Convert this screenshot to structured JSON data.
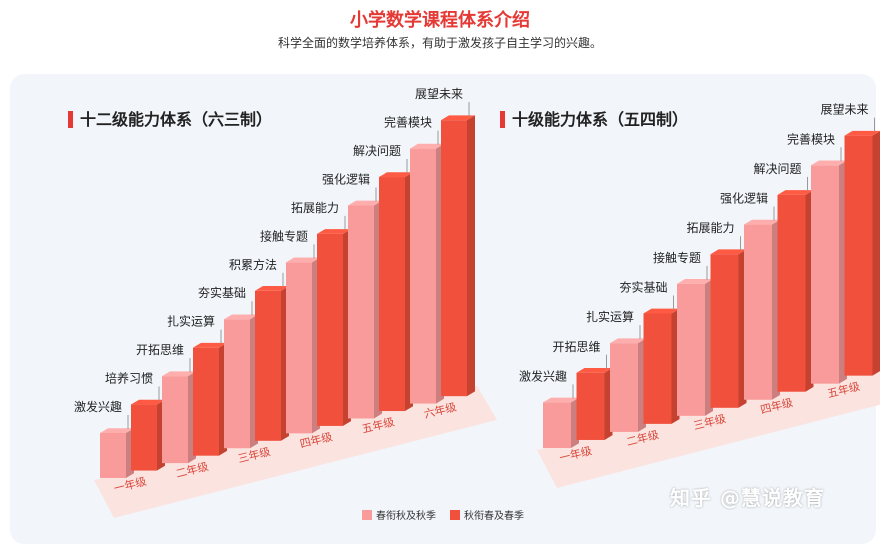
{
  "header": {
    "title": "小学数学课程体系介绍",
    "subtitle": "科学全面的数学培养体系，有助于激发孩子自主学习的兴趣。"
  },
  "colors": {
    "light": "#f99b9b",
    "dark": "#f0503c"
  },
  "legend": {
    "light_label": "春衔秋及秋季",
    "dark_label": "秋衔春及春季"
  },
  "watermark": "知乎 @慧说教育",
  "chart_data": [
    {
      "type": "bar",
      "title": "十二级能力体系（六三制）",
      "categories": [
        "一年级",
        "二年级",
        "三年级",
        "四年级",
        "五年级",
        "六年级"
      ],
      "levels": [
        "激发兴趣",
        "培养习惯",
        "开拓思维",
        "扎实运算",
        "夯实基础",
        "积累方法",
        "接触专题",
        "拓展能力",
        "强化逻辑",
        "解决问题",
        "完善模块",
        "展望未来"
      ],
      "series": [
        {
          "name": "春衔秋及秋季",
          "values": [
            1,
            3,
            5,
            7,
            9,
            11
          ]
        },
        {
          "name": "秋衔春及春季",
          "values": [
            2,
            4,
            6,
            8,
            10,
            12
          ]
        }
      ]
    },
    {
      "type": "bar",
      "title": "十级能力体系（五四制）",
      "categories": [
        "一年级",
        "二年级",
        "三年级",
        "四年级",
        "五年级"
      ],
      "levels": [
        "激发兴趣",
        "开拓思维",
        "扎实运算",
        "夯实基础",
        "接触专题",
        "拓展能力",
        "强化逻辑",
        "解决问题",
        "完善模块",
        "展望未来"
      ],
      "series": [
        {
          "name": "春衔秋及秋季",
          "values": [
            1,
            3,
            5,
            7,
            9
          ]
        },
        {
          "name": "秋衔春及春季",
          "values": [
            2,
            4,
            6,
            8,
            10
          ]
        }
      ]
    }
  ]
}
